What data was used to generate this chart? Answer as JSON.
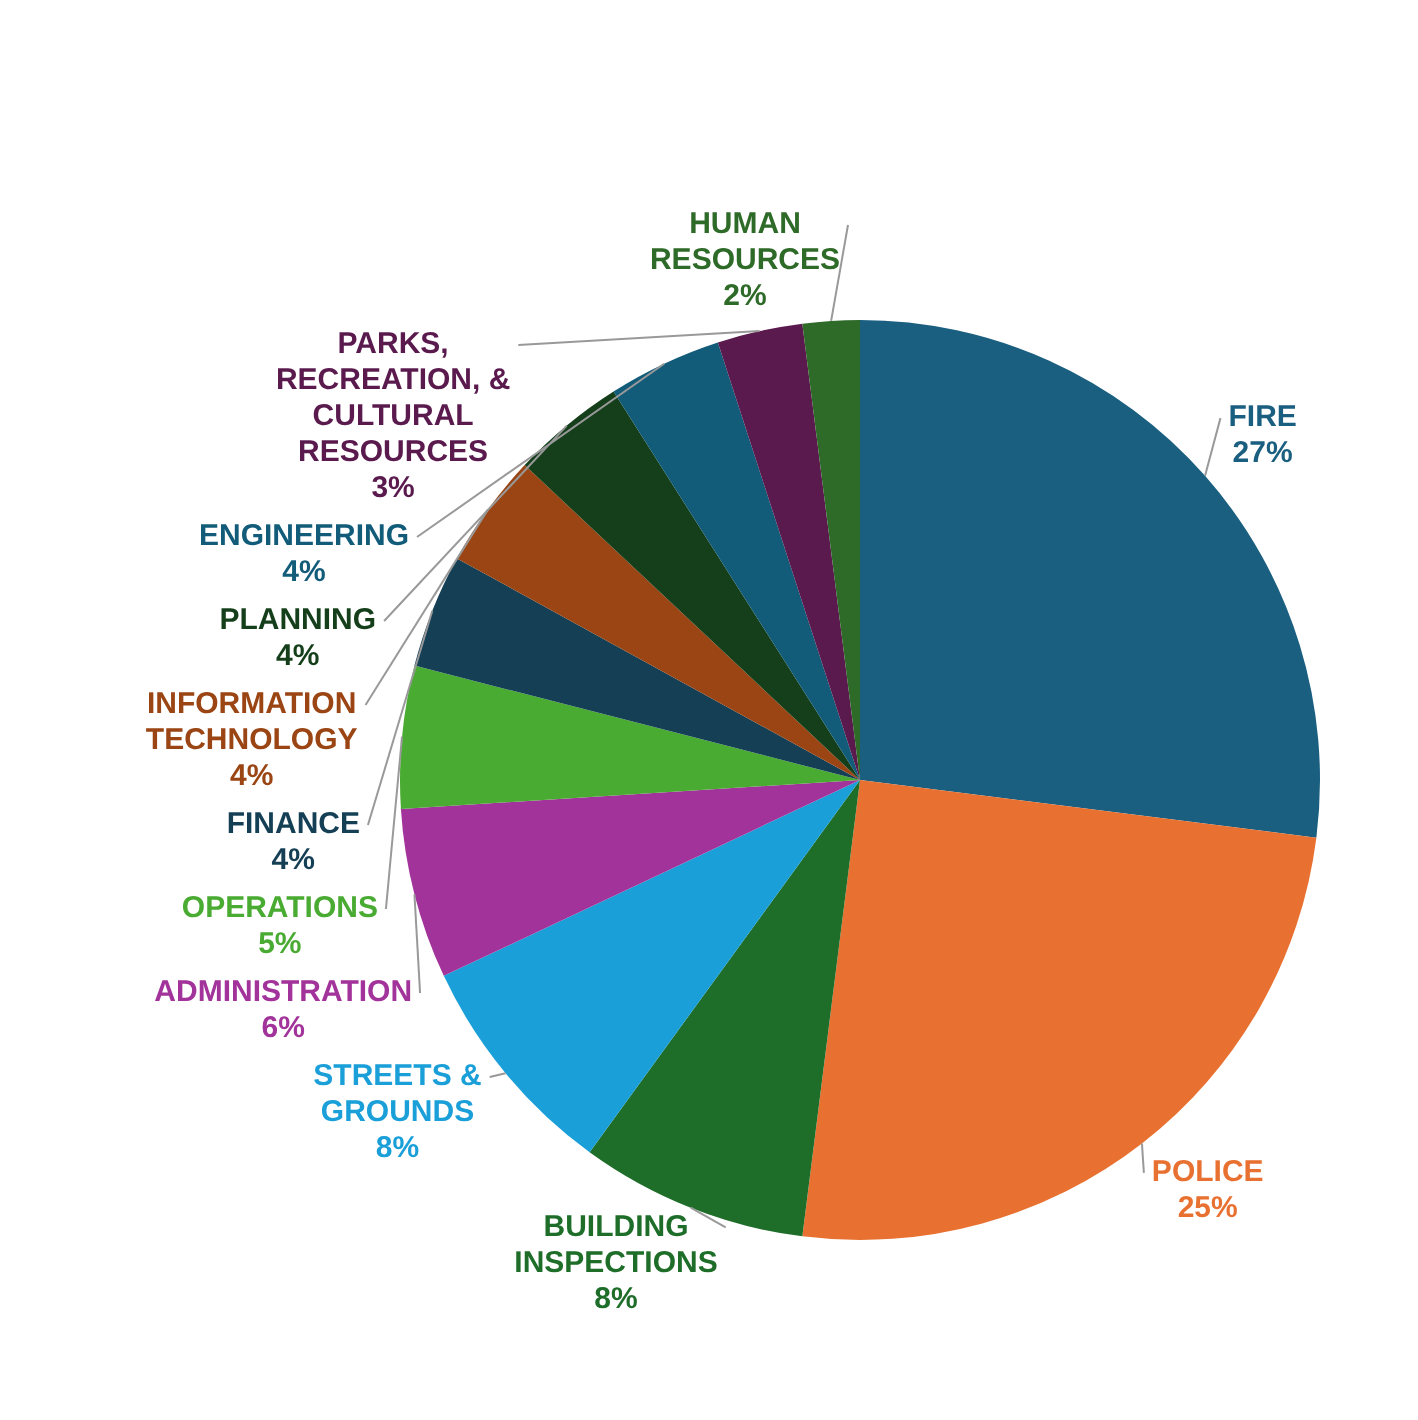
{
  "chart_data": {
    "type": "pie",
    "categories": [
      "FIRE",
      "POLICE",
      "BUILDING INSPECTIONS",
      "STREETS & GROUNDS",
      "ADMINISTRATION",
      "OPERATIONS",
      "FINANCE",
      "INFORMATION TECHNOLOGY",
      "PLANNING",
      "ENGINEERING",
      "PARKS, RECREATION, & CULTURAL RESOURCES",
      "HUMAN RESOURCES"
    ],
    "values": [
      27,
      25,
      8,
      8,
      6,
      5,
      4,
      4,
      4,
      4,
      3,
      2
    ],
    "colors": [
      "#1a5e80",
      "#e87131",
      "#1e6e2a",
      "#1a9fd8",
      "#a2339a",
      "#4aab33",
      "#143f55",
      "#9a4513",
      "#143f1a",
      "#125c7a",
      "#5a1a4e",
      "#2e6a28"
    ],
    "value_labels": [
      "27%",
      "25%",
      "8%",
      "8%",
      "6%",
      "5%",
      "4%",
      "4%",
      "4%",
      "4%",
      "3%",
      "2%"
    ],
    "legend": false
  }
}
